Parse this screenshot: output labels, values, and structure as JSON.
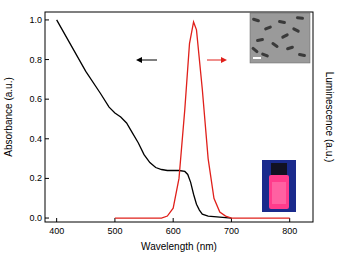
{
  "chart_data": {
    "type": "line",
    "x_label": "Wavelength (nm)",
    "y_label": "Absorbance (a.u.)",
    "y2_label": "Luminescence (a.u.)",
    "xlim": [
      380,
      840
    ],
    "xticks": [
      400,
      500,
      600,
      700,
      800
    ],
    "ylim": [
      -0.02,
      1.04
    ],
    "yticks": [
      {
        "value": 0,
        "label": "0.0"
      },
      0.2,
      0.4,
      0.6,
      0.8,
      {
        "value": 1,
        "label": "1.0"
      }
    ],
    "y2lim": [
      -0.02,
      1.04
    ],
    "series": [
      {
        "color": "#000000",
        "x": [
          400,
          425,
          450,
          475,
          490,
          500,
          510,
          520,
          530,
          540,
          550,
          560,
          570,
          580,
          590,
          600,
          610,
          620,
          625,
          630,
          635,
          640,
          645,
          650,
          660,
          680,
          700
        ],
        "values": [
          1.0,
          0.87,
          0.74,
          0.63,
          0.56,
          0.53,
          0.51,
          0.48,
          0.43,
          0.38,
          0.32,
          0.28,
          0.255,
          0.245,
          0.24,
          0.24,
          0.24,
          0.235,
          0.22,
          0.18,
          0.12,
          0.07,
          0.04,
          0.02,
          0.01,
          0.005,
          0
        ]
      },
      {
        "color": "#e0201b",
        "axis": "y2",
        "x": [
          500,
          580,
          590,
          600,
          610,
          620,
          628,
          635,
          640,
          650,
          660,
          670,
          680,
          690,
          700,
          800
        ],
        "values": [
          0,
          0,
          0.01,
          0.05,
          0.2,
          0.55,
          0.88,
          0.99,
          0.95,
          0.65,
          0.3,
          0.1,
          0.03,
          0.01,
          0,
          0
        ]
      }
    ]
  }
}
